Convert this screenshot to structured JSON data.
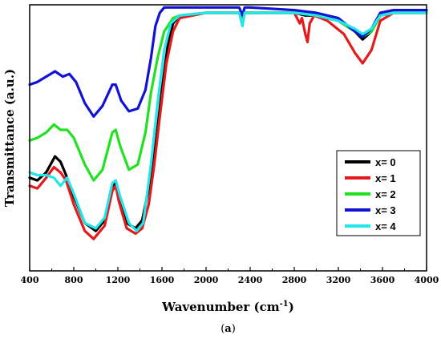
{
  "chart_data": {
    "type": "line",
    "xlabel": "Wavenumber (cm",
    "xlabel_superscript": "-1",
    "xlabel_suffix": ")",
    "ylabel": "Transmittance (a.u.)",
    "caption_prefix": "(",
    "caption_letter": "a",
    "caption_suffix": ")",
    "xlim": [
      400,
      4000
    ],
    "ylim": [
      0,
      100
    ],
    "x_ticks": [
      400,
      800,
      1200,
      1600,
      2000,
      2400,
      2800,
      3200,
      3600,
      4000
    ],
    "x_tick_labels": [
      "400",
      "800",
      "1200",
      "1600",
      "2000",
      "2400",
      "2800",
      "3200",
      "3600",
      "4000"
    ],
    "y_ticks_labeled": false,
    "grid": false,
    "legend_position": "bottom-right",
    "series": [
      {
        "name": "x= 0",
        "color": "#000000",
        "points": [
          [
            400,
            35
          ],
          [
            470,
            34
          ],
          [
            550,
            37
          ],
          [
            630,
            43
          ],
          [
            680,
            41
          ],
          [
            730,
            36
          ],
          [
            800,
            28
          ],
          [
            900,
            18
          ],
          [
            1000,
            15
          ],
          [
            1080,
            19
          ],
          [
            1150,
            32
          ],
          [
            1180,
            33
          ],
          [
            1210,
            28
          ],
          [
            1280,
            18
          ],
          [
            1360,
            16
          ],
          [
            1420,
            19
          ],
          [
            1500,
            35
          ],
          [
            1550,
            50
          ],
          [
            1600,
            68
          ],
          [
            1650,
            84
          ],
          [
            1700,
            93
          ],
          [
            1760,
            96
          ],
          [
            2000,
            97
          ],
          [
            2300,
            97
          ],
          [
            2330,
            93
          ],
          [
            2350,
            97
          ],
          [
            2400,
            97
          ],
          [
            2800,
            97
          ],
          [
            2900,
            96
          ],
          [
            3000,
            96
          ],
          [
            3200,
            94
          ],
          [
            3350,
            90
          ],
          [
            3420,
            87
          ],
          [
            3500,
            90
          ],
          [
            3580,
            96
          ],
          [
            3700,
            97
          ],
          [
            4000,
            97
          ]
        ]
      },
      {
        "name": "x= 1",
        "color": "#e41a1c",
        "points": [
          [
            400,
            32
          ],
          [
            470,
            31
          ],
          [
            550,
            35
          ],
          [
            620,
            39
          ],
          [
            680,
            37
          ],
          [
            730,
            34
          ],
          [
            800,
            25
          ],
          [
            900,
            15
          ],
          [
            980,
            12
          ],
          [
            1080,
            17
          ],
          [
            1150,
            30
          ],
          [
            1180,
            32
          ],
          [
            1210,
            26
          ],
          [
            1280,
            16
          ],
          [
            1360,
            14
          ],
          [
            1420,
            16
          ],
          [
            1480,
            25
          ],
          [
            1530,
            40
          ],
          [
            1580,
            58
          ],
          [
            1640,
            78
          ],
          [
            1700,
            90
          ],
          [
            1760,
            95
          ],
          [
            2000,
            97
          ],
          [
            2300,
            97
          ],
          [
            2330,
            93
          ],
          [
            2350,
            97
          ],
          [
            2400,
            97
          ],
          [
            2800,
            97
          ],
          [
            2850,
            93
          ],
          [
            2870,
            95
          ],
          [
            2900,
            89
          ],
          [
            2920,
            86
          ],
          [
            2940,
            93
          ],
          [
            2980,
            96
          ],
          [
            3100,
            94
          ],
          [
            3250,
            89
          ],
          [
            3350,
            82
          ],
          [
            3420,
            78
          ],
          [
            3500,
            83
          ],
          [
            3580,
            94
          ],
          [
            3700,
            97
          ],
          [
            4000,
            97
          ]
        ]
      },
      {
        "name": "x= 2",
        "color": "#22e022",
        "points": [
          [
            400,
            49
          ],
          [
            470,
            50
          ],
          [
            550,
            52
          ],
          [
            620,
            55
          ],
          [
            680,
            53
          ],
          [
            740,
            53
          ],
          [
            800,
            50
          ],
          [
            900,
            40
          ],
          [
            980,
            34
          ],
          [
            1060,
            38
          ],
          [
            1150,
            52
          ],
          [
            1180,
            53
          ],
          [
            1220,
            47
          ],
          [
            1300,
            38
          ],
          [
            1380,
            40
          ],
          [
            1450,
            52
          ],
          [
            1500,
            67
          ],
          [
            1560,
            80
          ],
          [
            1620,
            90
          ],
          [
            1700,
            95
          ],
          [
            1760,
            96
          ],
          [
            2000,
            97
          ],
          [
            2300,
            97
          ],
          [
            2330,
            93
          ],
          [
            2350,
            97
          ],
          [
            2400,
            97
          ],
          [
            2800,
            97
          ],
          [
            3000,
            96
          ],
          [
            3200,
            94
          ],
          [
            3350,
            90
          ],
          [
            3420,
            88
          ],
          [
            3500,
            90
          ],
          [
            3580,
            96
          ],
          [
            3700,
            97
          ],
          [
            4000,
            97
          ]
        ]
      },
      {
        "name": "x= 3",
        "color": "#1212d4",
        "points": [
          [
            400,
            70
          ],
          [
            470,
            71
          ],
          [
            550,
            73
          ],
          [
            630,
            75
          ],
          [
            700,
            73
          ],
          [
            760,
            74
          ],
          [
            820,
            71
          ],
          [
            900,
            63
          ],
          [
            980,
            58
          ],
          [
            1060,
            62
          ],
          [
            1150,
            70
          ],
          [
            1180,
            70
          ],
          [
            1230,
            64
          ],
          [
            1300,
            60
          ],
          [
            1380,
            61
          ],
          [
            1450,
            68
          ],
          [
            1500,
            80
          ],
          [
            1540,
            92
          ],
          [
            1580,
            97
          ],
          [
            1620,
            99
          ],
          [
            2000,
            99
          ],
          [
            2300,
            99
          ],
          [
            2330,
            96
          ],
          [
            2350,
            99
          ],
          [
            2400,
            99
          ],
          [
            2800,
            98
          ],
          [
            3000,
            97
          ],
          [
            3200,
            95
          ],
          [
            3350,
            90
          ],
          [
            3420,
            88
          ],
          [
            3500,
            91
          ],
          [
            3580,
            97
          ],
          [
            3700,
            98
          ],
          [
            4000,
            98
          ]
        ]
      },
      {
        "name": "x= 4",
        "color": "#22e6ea",
        "points": [
          [
            400,
            37
          ],
          [
            470,
            36
          ],
          [
            550,
            36
          ],
          [
            620,
            35
          ],
          [
            680,
            32
          ],
          [
            740,
            35
          ],
          [
            800,
            29
          ],
          [
            900,
            18
          ],
          [
            1000,
            16
          ],
          [
            1080,
            20
          ],
          [
            1150,
            33
          ],
          [
            1180,
            34
          ],
          [
            1220,
            28
          ],
          [
            1300,
            18
          ],
          [
            1370,
            15
          ],
          [
            1430,
            18
          ],
          [
            1500,
            40
          ],
          [
            1560,
            63
          ],
          [
            1620,
            83
          ],
          [
            1680,
            93
          ],
          [
            1760,
            96
          ],
          [
            2000,
            97
          ],
          [
            2300,
            97
          ],
          [
            2330,
            92
          ],
          [
            2350,
            97
          ],
          [
            2400,
            97
          ],
          [
            2800,
            97
          ],
          [
            3000,
            96
          ],
          [
            3200,
            94
          ],
          [
            3350,
            91
          ],
          [
            3420,
            89
          ],
          [
            3500,
            91
          ],
          [
            3580,
            96
          ],
          [
            3700,
            97
          ],
          [
            4000,
            97
          ]
        ]
      }
    ]
  }
}
